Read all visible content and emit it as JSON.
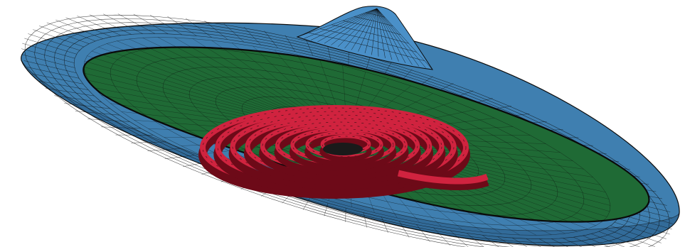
{
  "figure": {
    "kind": "3D finite-element mesh rendering",
    "background_color": "#ffffff",
    "mesh_line_color": "#0a0a0a",
    "parts": [
      {
        "id": "outer-disk",
        "color": "#3f7fb0"
      },
      {
        "id": "apex-cone",
        "color": "#4a90c8"
      },
      {
        "id": "inner-disk",
        "color": "#1f6a35"
      },
      {
        "id": "spiral-coil",
        "color": "#d0233f"
      }
    ]
  }
}
